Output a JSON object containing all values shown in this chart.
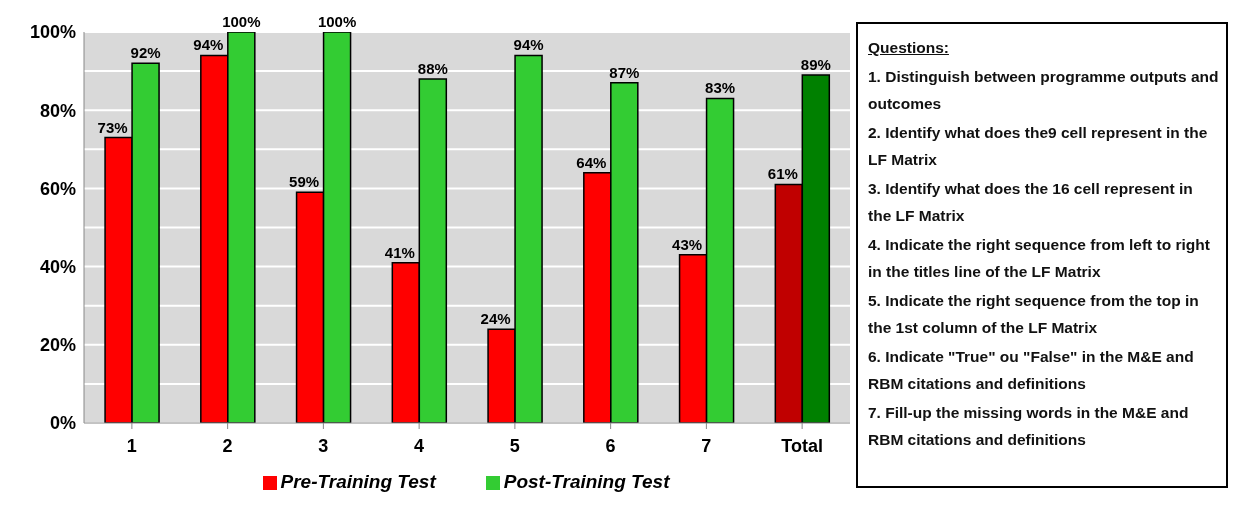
{
  "chart_data": {
    "type": "bar",
    "categories": [
      "1",
      "2",
      "3",
      "4",
      "5",
      "6",
      "7",
      "Total"
    ],
    "series": [
      {
        "name": "Pre-Training Test",
        "color": "#ff0000",
        "colors": [
          "#ff0000",
          "#ff0000",
          "#ff0000",
          "#ff0000",
          "#ff0000",
          "#ff0000",
          "#ff0000",
          "#c00000"
        ],
        "values": [
          73,
          94,
          59,
          41,
          24,
          64,
          43,
          61
        ],
        "value_labels": [
          "73%",
          "94%",
          "59%",
          "41%",
          "24%",
          "64%",
          "43%",
          "61%"
        ]
      },
      {
        "name": "Post-Training Test",
        "color": "#33cc33",
        "colors": [
          "#33cc33",
          "#33cc33",
          "#33cc33",
          "#33cc33",
          "#33cc33",
          "#33cc33",
          "#33cc33",
          "#008000"
        ],
        "values": [
          92,
          100,
          100,
          88,
          94,
          87,
          83,
          89
        ],
        "value_labels": [
          "92%",
          "100%",
          "100%",
          "88%",
          "94%",
          "87%",
          "83%",
          "89%"
        ]
      }
    ],
    "ylim": [
      0,
      100
    ],
    "yticks": [
      {
        "value": 0,
        "label": "0%"
      },
      {
        "value": 10,
        "label": null
      },
      {
        "value": 20,
        "label": "20%"
      },
      {
        "value": 30,
        "label": null
      },
      {
        "value": 40,
        "label": "40%"
      },
      {
        "value": 50,
        "label": null
      },
      {
        "value": 60,
        "label": "60%"
      },
      {
        "value": 70,
        "label": null
      },
      {
        "value": 80,
        "label": "80%"
      },
      {
        "value": 90,
        "label": null
      },
      {
        "value": 100,
        "label": "100%"
      }
    ],
    "grid": "y",
    "legend": "bottom",
    "annotations": [
      "Questions:",
      "1. Distinguish between programme outputs and outcomes",
      "2. Identify what does the9 cell represent in the LF Matrix",
      "3. Identify what does the 16 cell represent in the LF Matrix",
      "4. Indicate the right sequence from left to right in the titles line of the LF Matrix",
      "5. Indicate the right sequence from the top in the 1st column  of the LF Matrix",
      "6. Indicate \"True\" ou \"False\" in the M&E and RBM citations and definitions",
      "7. Fill-up the missing words in the M&E and RBM citations and definitions"
    ]
  }
}
